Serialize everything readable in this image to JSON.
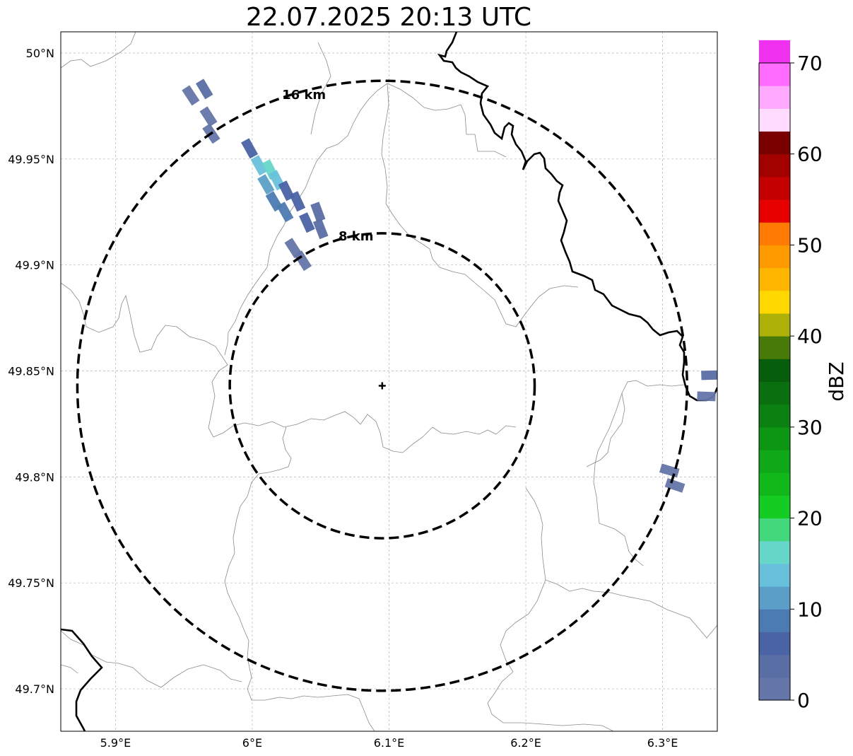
{
  "title": "22.07.2025 20:13 UTC",
  "map": {
    "extent": {
      "lon": [
        5.86,
        6.34
      ],
      "lat": [
        49.68,
        50.01
      ]
    },
    "x_ticks": [
      {
        "value": 5.9,
        "label": "5.9°E"
      },
      {
        "value": 6.0,
        "label": "6°E"
      },
      {
        "value": 6.1,
        "label": "6.1°E"
      },
      {
        "value": 6.2,
        "label": "6.2°E"
      },
      {
        "value": 6.3,
        "label": "6.3°E"
      }
    ],
    "y_ticks": [
      {
        "value": 50.0,
        "label": "50°N"
      },
      {
        "value": 49.95,
        "label": "49.95°N"
      },
      {
        "value": 49.9,
        "label": "49.9°N"
      },
      {
        "value": 49.85,
        "label": "49.85°N"
      },
      {
        "value": 49.8,
        "label": "49.8°N"
      },
      {
        "value": 49.75,
        "label": "49.75°N"
      },
      {
        "value": 49.7,
        "label": "49.7°N"
      }
    ],
    "grid": true,
    "radar_site": {
      "lon": 6.095,
      "lat": 49.843
    },
    "range_rings": [
      {
        "radius_km": 8,
        "label": "8 km"
      },
      {
        "radius_km": 16,
        "label": "16 km"
      }
    ]
  },
  "colorbar": {
    "label": "dBZ",
    "min": 0,
    "max": 70,
    "step": 2.5,
    "tick_labels": [
      "0",
      "10",
      "20",
      "30",
      "40",
      "50",
      "60",
      "70"
    ],
    "colors": [
      "#6475a8",
      "#5a6ea6",
      "#4a63a5",
      "#4b7bb2",
      "#5b9fc8",
      "#68c1dc",
      "#65d6c8",
      "#44d87c",
      "#14cc22",
      "#10b81a",
      "#0fa818",
      "#0d9614",
      "#0b8112",
      "#0a700f",
      "#065e0c",
      "#487a0a",
      "#aeb108",
      "#ffd800",
      "#ffb600",
      "#ff9900",
      "#ff7a00",
      "#e60000",
      "#c40000",
      "#a30000",
      "#7a0000",
      "#ffdcff",
      "#ffaaff",
      "#ff6cff",
      "#f032f0"
    ]
  },
  "echoes": [
    {
      "lon": 5.955,
      "lat": 49.98,
      "dbz": 2
    },
    {
      "lon": 5.965,
      "lat": 49.983,
      "dbz": 3
    },
    {
      "lon": 5.968,
      "lat": 49.97,
      "dbz": 2
    },
    {
      "lon": 5.97,
      "lat": 49.962,
      "dbz": 1
    },
    {
      "lon": 5.998,
      "lat": 49.955,
      "dbz": 5
    },
    {
      "lon": 6.005,
      "lat": 49.947,
      "dbz": 13
    },
    {
      "lon": 6.013,
      "lat": 49.945,
      "dbz": 15
    },
    {
      "lon": 6.01,
      "lat": 49.938,
      "dbz": 10
    },
    {
      "lon": 6.018,
      "lat": 49.94,
      "dbz": 14
    },
    {
      "lon": 6.016,
      "lat": 49.93,
      "dbz": 8
    },
    {
      "lon": 6.025,
      "lat": 49.935,
      "dbz": 6
    },
    {
      "lon": 6.024,
      "lat": 49.925,
      "dbz": 9
    },
    {
      "lon": 6.033,
      "lat": 49.93,
      "dbz": 7
    },
    {
      "lon": 6.04,
      "lat": 49.92,
      "dbz": 5
    },
    {
      "lon": 6.048,
      "lat": 49.925,
      "dbz": 4
    },
    {
      "lon": 6.05,
      "lat": 49.917,
      "dbz": 3
    },
    {
      "lon": 6.03,
      "lat": 49.908,
      "dbz": 2
    },
    {
      "lon": 6.037,
      "lat": 49.902,
      "dbz": 2
    },
    {
      "lon": 6.335,
      "lat": 49.848,
      "dbz": 3
    },
    {
      "lon": 6.332,
      "lat": 49.838,
      "dbz": 2
    },
    {
      "lon": 6.305,
      "lat": 49.803,
      "dbz": 2
    },
    {
      "lon": 6.309,
      "lat": 49.796,
      "dbz": 1
    }
  ]
}
